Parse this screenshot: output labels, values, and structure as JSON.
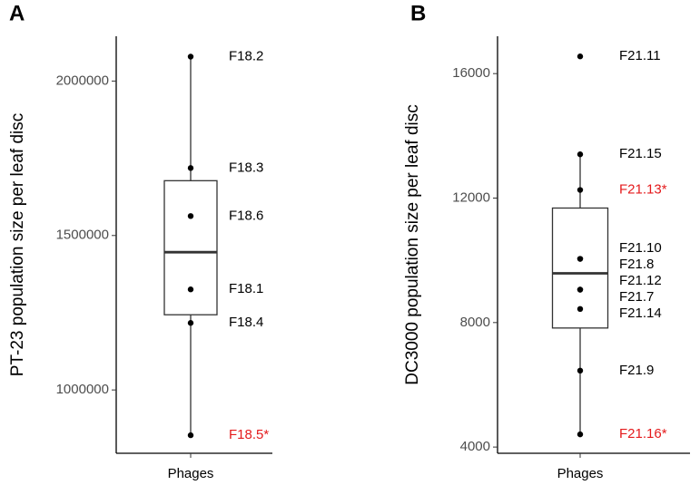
{
  "chart_data": [
    {
      "type": "box",
      "panel": "A",
      "ylabel": "PT-23 population size per leaf disc",
      "categories": [
        "Phages"
      ],
      "ylim": [
        795000,
        2145000
      ],
      "yticks": [
        1000000,
        1500000,
        2000000
      ],
      "box": {
        "whisker_low": 853400,
        "q1": 1243400,
        "median": 1446000,
        "q3": 1677400,
        "whisker_high": 2079000
      },
      "points": [
        2079000,
        1718500,
        1563000,
        1325500,
        1217000,
        853400
      ],
      "labels": [
        "F18.2",
        "F18.3",
        "F18.6",
        "F18.1",
        "F18.4",
        "F18.5*"
      ],
      "label_colors": [
        "#000000",
        "#000000",
        "#000000",
        "#000000",
        "#000000",
        "#e41a1c"
      ],
      "box_color": "#333333",
      "point_color": "#000000"
    },
    {
      "type": "box",
      "panel": "B",
      "ylabel": "DC3000 population size per leaf disc",
      "categories": [
        "Phages"
      ],
      "ylim": [
        3800,
        17200
      ],
      "yticks": [
        4000,
        8000,
        12000,
        16000
      ],
      "box": {
        "whisker_low": 4408,
        "q1": 7825,
        "median": 9582,
        "q3": 11680,
        "whisker_high": 13407
      },
      "points": [
        16553,
        13407,
        12262,
        10048,
        10048,
        9058,
        9058,
        8437,
        6456,
        4408
      ],
      "labels": [
        "F21.11",
        "F21.15",
        "F21.13*",
        "F21.10",
        "F21.8",
        "F21.12",
        "F21.7",
        "F21.14",
        "F21.9",
        "F21.16*"
      ],
      "label_colors": [
        "#000000",
        "#000000",
        "#e41a1c",
        "#000000",
        "#000000",
        "#000000",
        "#000000",
        "#000000",
        "#000000",
        "#e41a1c"
      ],
      "box_color": "#333333",
      "point_color": "#000000"
    }
  ]
}
